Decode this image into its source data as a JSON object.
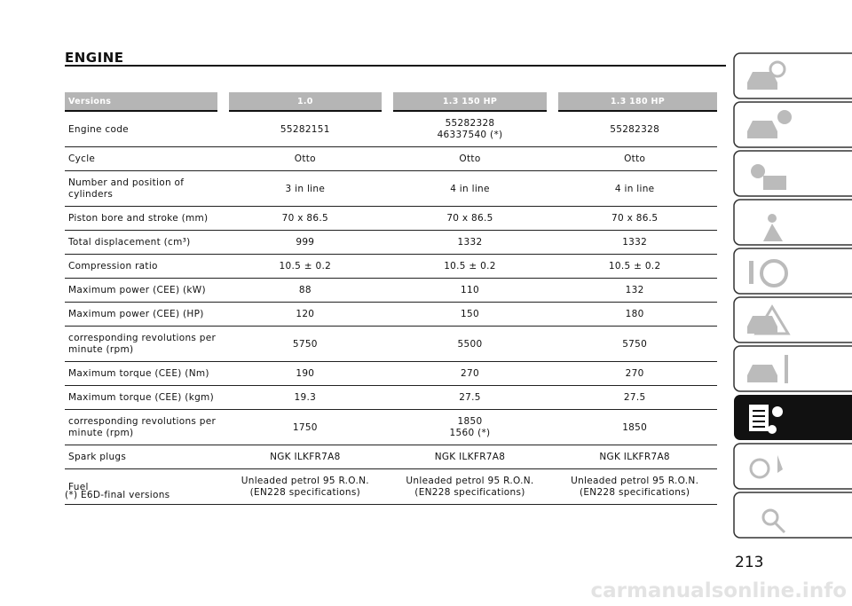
{
  "header": {
    "title": "ENGINE"
  },
  "table": {
    "columns": [
      "Versions",
      "1.0",
      "1.3 150 HP",
      "1.3 180 HP"
    ],
    "rows": [
      [
        "Engine code",
        "55282151",
        "55282328\n46337540 (*)",
        "55282328"
      ],
      [
        "Cycle",
        "Otto",
        "Otto",
        "Otto"
      ],
      [
        "Number and position of cylinders",
        "3 in line",
        "4 in line",
        "4 in line"
      ],
      [
        "Piston bore and stroke (mm)",
        "70 x 86.5",
        "70 x 86.5",
        "70 x 86.5"
      ],
      [
        "Total displacement (cm³)",
        "999",
        "1332",
        "1332"
      ],
      [
        "Compression ratio",
        "10.5 ± 0.2",
        "10.5 ± 0.2",
        "10.5 ± 0.2"
      ],
      [
        "Maximum power (CEE) (kW)",
        "88",
        "110",
        "132"
      ],
      [
        "Maximum power (CEE) (HP)",
        "120",
        "150",
        "180"
      ],
      [
        "corresponding revolutions per minute (rpm)",
        "5750",
        "5500",
        "5750"
      ],
      [
        "Maximum torque (CEE) (Nm)",
        "190",
        "270",
        "270"
      ],
      [
        "Maximum torque (CEE) (kgm)",
        "19.3",
        "27.5",
        "27.5"
      ],
      [
        "corresponding revolutions per minute (rpm)",
        "1750",
        "1850\n1560 (*)",
        "1850"
      ],
      [
        "Spark plugs",
        "NGK ILKFR7A8",
        "NGK ILKFR7A8",
        "NGK ILKFR7A8"
      ],
      [
        "Fuel",
        "Unleaded petrol 95 R.O.N.\n(EN228 specifications)",
        "Unleaded petrol 95 R.O.N.\n(EN228 specifications)",
        "Unleaded petrol 95 R.O.N.\n(EN228 specifications)"
      ]
    ]
  },
  "footnote": "(*) E6D-final versions",
  "page_number": "213",
  "watermark": "carmanualsonline.info"
}
